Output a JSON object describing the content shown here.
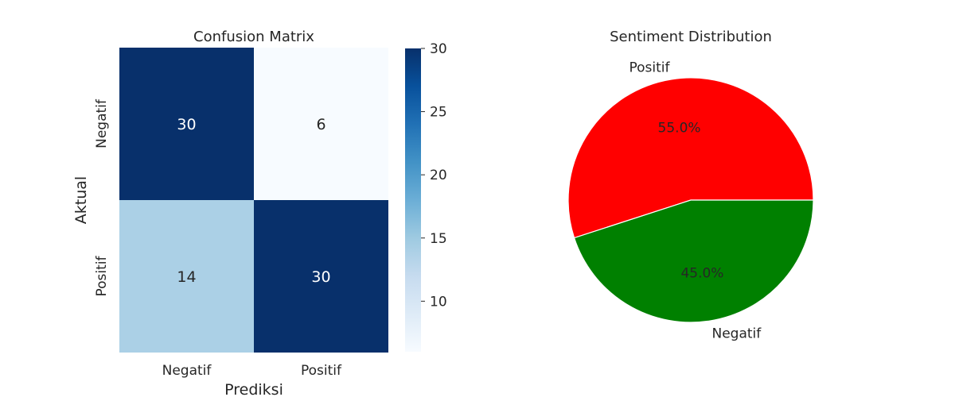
{
  "chart_data": [
    {
      "type": "heatmap",
      "title": "Confusion Matrix",
      "xlabel": "Prediksi",
      "ylabel": "Aktual",
      "x_categories": [
        "Negatif",
        "Positif"
      ],
      "y_categories": [
        "Negatif",
        "Positif"
      ],
      "values": [
        [
          30,
          6
        ],
        [
          14,
          30
        ]
      ],
      "colormap": "Blues",
      "colorbar": {
        "range": [
          6,
          30
        ],
        "ticks": [
          10,
          15,
          20,
          25,
          30
        ]
      }
    },
    {
      "type": "pie",
      "title": "Sentiment Distribution",
      "slices": [
        {
          "label": "Positif",
          "percent": 55.0,
          "pct_label": "55.0%",
          "color": "#ff0000"
        },
        {
          "label": "Negatif",
          "percent": 45.0,
          "pct_label": "45.0%",
          "color": "#008000"
        }
      ]
    }
  ]
}
